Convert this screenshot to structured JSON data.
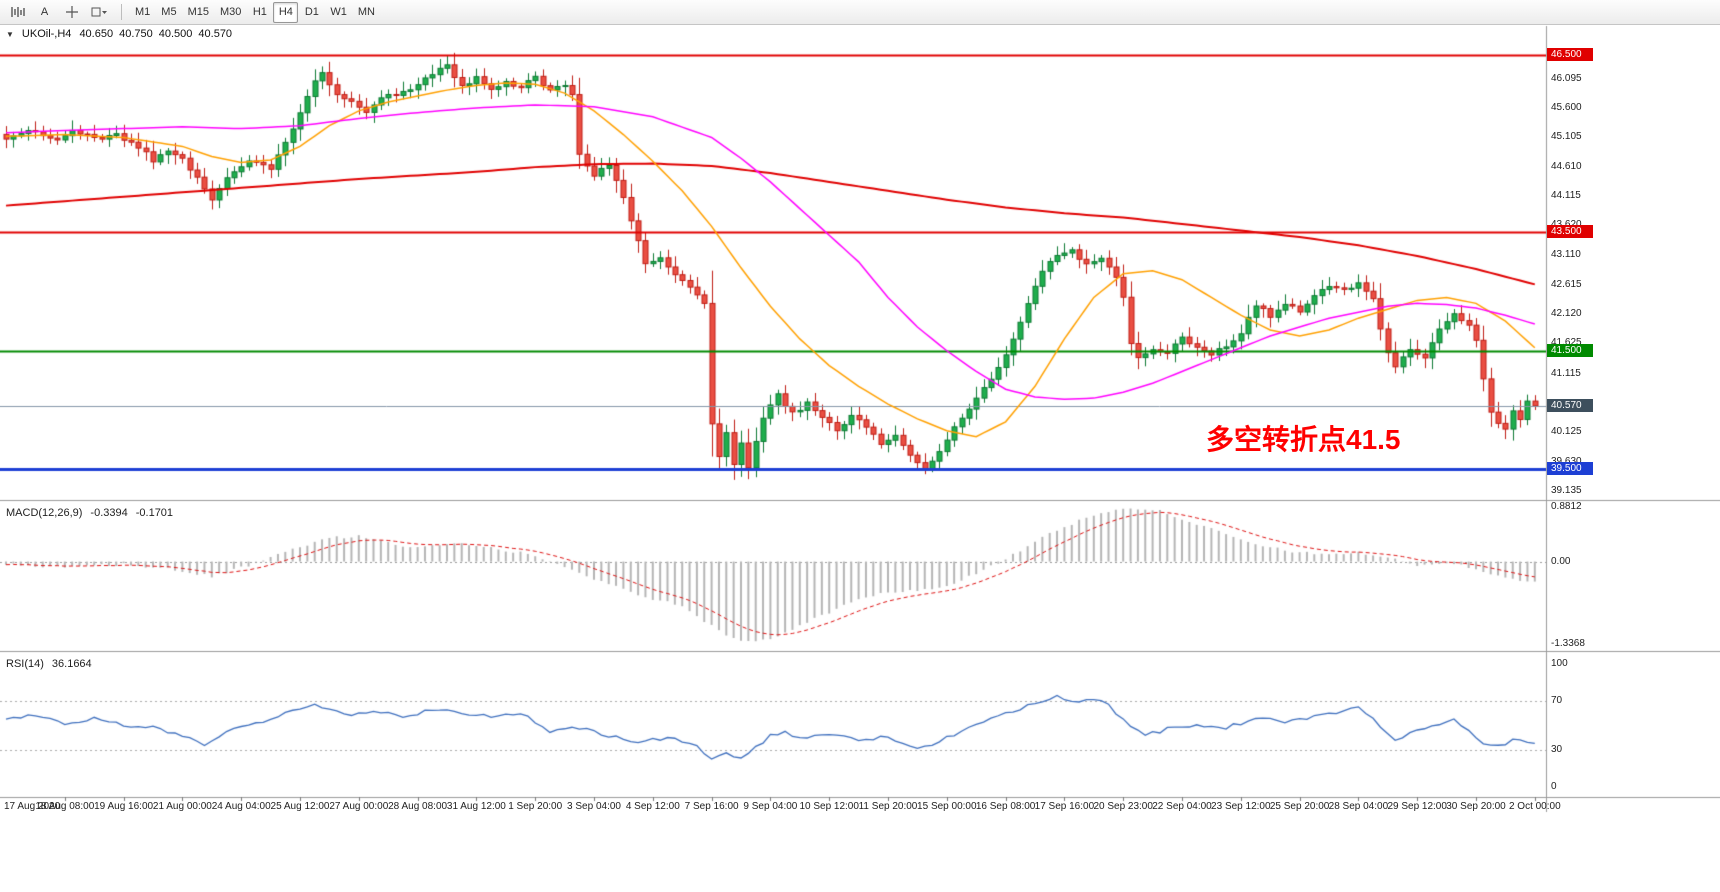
{
  "toolbar": {
    "annotate_label": "A",
    "active_timeframe": "H4",
    "timeframes": [
      {
        "label": "M1"
      },
      {
        "label": "M5"
      },
      {
        "label": "M15"
      },
      {
        "label": "M30"
      },
      {
        "label": "H1"
      },
      {
        "label": "H4"
      },
      {
        "label": "D1"
      },
      {
        "label": "W1"
      },
      {
        "label": "MN"
      }
    ]
  },
  "chart_header": {
    "collapse_icon": "▼",
    "symbol_period": "UKOil-,H4",
    "open": "40.650",
    "high": "40.750",
    "low": "40.500",
    "close": "40.570"
  },
  "annotation": {
    "text": "多空转折点41.5",
    "color": "#ff0000"
  },
  "macd": {
    "title": "MACD(12,26,9)",
    "value": "-0.3394",
    "signal": "-0.1701",
    "axis": [
      "0.8812",
      "0.00",
      "-1.3368"
    ]
  },
  "rsi": {
    "title": "RSI(14)",
    "value": "36.1664",
    "axis": [
      "100",
      "70",
      "30",
      "0"
    ]
  },
  "price_axis": [
    "46.095",
    "45.600",
    "45.105",
    "44.610",
    "44.115",
    "43.620",
    "43.110",
    "42.615",
    "42.120",
    "41.625",
    "41.115",
    "40.125",
    "39.630",
    "39.135"
  ],
  "time_axis": [
    "17 Aug 2020",
    "18 Aug 08:00",
    "19 Aug 16:00",
    "21 Aug 00:00",
    "24 Aug 04:00",
    "25 Aug 12:00",
    "27 Aug 00:00",
    "28 Aug 08:00",
    "31 Aug 12:00",
    "1 Sep 20:00",
    "3 Sep 04:00",
    "4 Sep 12:00",
    "7 Sep 16:00",
    "9 Sep 04:00",
    "10 Sep 12:00",
    "11 Sep 20:00",
    "15 Sep 00:00",
    "16 Sep 08:00",
    "17 Sep 16:00",
    "20 Sep 23:00",
    "22 Sep 04:00",
    "23 Sep 12:00",
    "25 Sep 20:00",
    "28 Sep 04:00",
    "29 Sep 12:00",
    "30 Sep 20:00",
    "2 Oct 00:00"
  ],
  "chart_data": {
    "type": "candlestick",
    "title": "UKOil-,H4",
    "bars": 209,
    "price_range": [
      38.98,
      46.78
    ],
    "macd_range": [
      -1.45,
      0.95
    ],
    "rsi_levels": [
      30,
      70
    ],
    "last_ohlc": {
      "open": 40.65,
      "high": 40.75,
      "low": 40.5,
      "close": 40.57
    },
    "hlines": [
      {
        "value": 46.5,
        "label": "46.500",
        "color": "#e00000",
        "width": 2
      },
      {
        "value": 43.5,
        "label": "43.500",
        "color": "#e00000",
        "width": 2
      },
      {
        "value": 41.5,
        "label": "41.500",
        "color": "#008a00",
        "width": 2
      },
      {
        "value": 39.5,
        "label": "39.500",
        "color": "#1d3fd4",
        "width": 3
      }
    ],
    "current_price": {
      "value": 40.57,
      "label": "40.570",
      "line_color": "#8496a8",
      "badge_color": "#3d4f5d"
    },
    "colors": {
      "up_fill": "#1fae4d",
      "up_border": "#0c7a33",
      "down_fill": "#ea4f43",
      "down_border": "#bf1d15",
      "ma_fast": "#ffa000",
      "ma_mid": "#ff00ff",
      "ma_slow": "#e00000",
      "macd_hist": "#b5b5b5",
      "macd_signal": "#dd1111",
      "rsi_line": "#3e6fbe"
    },
    "close_anchors": [
      [
        0,
        45.1
      ],
      [
        3,
        45.22
      ],
      [
        6,
        45.05
      ],
      [
        9,
        45.18
      ],
      [
        12,
        45.08
      ],
      [
        15,
        45.15
      ],
      [
        18,
        44.95
      ],
      [
        20,
        44.7
      ],
      [
        22,
        44.85
      ],
      [
        24,
        44.75
      ],
      [
        26,
        44.4
      ],
      [
        28,
        44.05
      ],
      [
        30,
        44.45
      ],
      [
        33,
        44.7
      ],
      [
        36,
        44.6
      ],
      [
        38,
        45.0
      ],
      [
        40,
        45.55
      ],
      [
        42,
        46.05
      ],
      [
        43,
        46.2
      ],
      [
        45,
        45.85
      ],
      [
        47,
        45.7
      ],
      [
        49,
        45.55
      ],
      [
        51,
        45.75
      ],
      [
        53,
        45.85
      ],
      [
        55,
        45.9
      ],
      [
        57,
        46.1
      ],
      [
        59,
        46.3
      ],
      [
        60,
        46.35
      ],
      [
        62,
        45.95
      ],
      [
        64,
        46.1
      ],
      [
        66,
        45.9
      ],
      [
        68,
        46.05
      ],
      [
        70,
        45.95
      ],
      [
        72,
        46.1
      ],
      [
        74,
        45.9
      ],
      [
        76,
        45.95
      ],
      [
        77,
        45.8
      ],
      [
        78,
        44.85
      ],
      [
        80,
        44.45
      ],
      [
        82,
        44.65
      ],
      [
        84,
        44.1
      ],
      [
        85,
        43.7
      ],
      [
        86,
        43.35
      ],
      [
        87,
        42.95
      ],
      [
        89,
        43.1
      ],
      [
        91,
        42.75
      ],
      [
        93,
        42.55
      ],
      [
        95,
        42.3
      ],
      [
        96,
        40.3
      ],
      [
        97,
        39.75
      ],
      [
        98,
        40.15
      ],
      [
        99,
        39.6
      ],
      [
        100,
        39.95
      ],
      [
        101,
        39.55
      ],
      [
        103,
        40.35
      ],
      [
        105,
        40.75
      ],
      [
        107,
        40.45
      ],
      [
        109,
        40.6
      ],
      [
        111,
        40.35
      ],
      [
        113,
        40.15
      ],
      [
        115,
        40.4
      ],
      [
        117,
        40.25
      ],
      [
        119,
        39.95
      ],
      [
        121,
        40.1
      ],
      [
        123,
        39.75
      ],
      [
        125,
        39.5
      ],
      [
        127,
        39.8
      ],
      [
        129,
        40.2
      ],
      [
        131,
        40.55
      ],
      [
        133,
        40.9
      ],
      [
        135,
        41.2
      ],
      [
        137,
        41.7
      ],
      [
        139,
        42.3
      ],
      [
        141,
        42.85
      ],
      [
        143,
        43.1
      ],
      [
        145,
        43.2
      ],
      [
        147,
        42.95
      ],
      [
        149,
        43.05
      ],
      [
        151,
        42.7
      ],
      [
        152,
        42.4
      ],
      [
        153,
        41.6
      ],
      [
        154,
        41.35
      ],
      [
        156,
        41.55
      ],
      [
        158,
        41.45
      ],
      [
        160,
        41.75
      ],
      [
        162,
        41.55
      ],
      [
        164,
        41.45
      ],
      [
        166,
        41.6
      ],
      [
        168,
        41.8
      ],
      [
        170,
        42.25
      ],
      [
        172,
        42.1
      ],
      [
        174,
        42.3
      ],
      [
        176,
        42.15
      ],
      [
        178,
        42.4
      ],
      [
        180,
        42.6
      ],
      [
        182,
        42.5
      ],
      [
        184,
        42.65
      ],
      [
        186,
        42.4
      ],
      [
        187,
        41.9
      ],
      [
        188,
        41.45
      ],
      [
        189,
        41.25
      ],
      [
        191,
        41.55
      ],
      [
        193,
        41.4
      ],
      [
        195,
        41.85
      ],
      [
        197,
        42.1
      ],
      [
        199,
        41.95
      ],
      [
        200,
        41.7
      ],
      [
        201,
        41.05
      ],
      [
        202,
        40.45
      ],
      [
        203,
        40.3
      ],
      [
        204,
        40.2
      ],
      [
        205,
        40.45
      ],
      [
        206,
        40.3
      ],
      [
        207,
        40.65
      ],
      [
        208,
        40.57
      ]
    ],
    "ma_fast_anchors": [
      [
        0,
        45.12
      ],
      [
        8,
        45.15
      ],
      [
        16,
        45.1
      ],
      [
        24,
        44.95
      ],
      [
        28,
        44.78
      ],
      [
        32,
        44.68
      ],
      [
        36,
        44.72
      ],
      [
        40,
        44.95
      ],
      [
        44,
        45.3
      ],
      [
        48,
        45.55
      ],
      [
        52,
        45.7
      ],
      [
        56,
        45.8
      ],
      [
        60,
        45.9
      ],
      [
        64,
        45.98
      ],
      [
        68,
        46.02
      ],
      [
        72,
        46.0
      ],
      [
        76,
        45.85
      ],
      [
        80,
        45.55
      ],
      [
        84,
        45.15
      ],
      [
        88,
        44.7
      ],
      [
        92,
        44.2
      ],
      [
        96,
        43.6
      ],
      [
        100,
        42.9
      ],
      [
        104,
        42.25
      ],
      [
        108,
        41.7
      ],
      [
        112,
        41.25
      ],
      [
        116,
        40.9
      ],
      [
        120,
        40.6
      ],
      [
        124,
        40.35
      ],
      [
        128,
        40.15
      ],
      [
        132,
        40.05
      ],
      [
        136,
        40.3
      ],
      [
        140,
        40.9
      ],
      [
        144,
        41.7
      ],
      [
        148,
        42.4
      ],
      [
        152,
        42.8
      ],
      [
        156,
        42.85
      ],
      [
        160,
        42.7
      ],
      [
        164,
        42.4
      ],
      [
        168,
        42.1
      ],
      [
        172,
        41.85
      ],
      [
        176,
        41.75
      ],
      [
        180,
        41.85
      ],
      [
        184,
        42.05
      ],
      [
        188,
        42.2
      ],
      [
        192,
        42.35
      ],
      [
        196,
        42.4
      ],
      [
        200,
        42.3
      ],
      [
        204,
        42.0
      ],
      [
        208,
        41.55
      ]
    ],
    "ma_mid_anchors": [
      [
        0,
        45.18
      ],
      [
        8,
        45.22
      ],
      [
        16,
        45.25
      ],
      [
        24,
        45.28
      ],
      [
        32,
        45.25
      ],
      [
        40,
        45.3
      ],
      [
        48,
        45.42
      ],
      [
        56,
        45.52
      ],
      [
        64,
        45.6
      ],
      [
        72,
        45.65
      ],
      [
        80,
        45.62
      ],
      [
        88,
        45.45
      ],
      [
        96,
        45.1
      ],
      [
        100,
        44.75
      ],
      [
        104,
        44.35
      ],
      [
        108,
        43.9
      ],
      [
        112,
        43.45
      ],
      [
        116,
        43.0
      ],
      [
        120,
        42.4
      ],
      [
        124,
        41.9
      ],
      [
        128,
        41.5
      ],
      [
        132,
        41.15
      ],
      [
        136,
        40.85
      ],
      [
        140,
        40.72
      ],
      [
        144,
        40.68
      ],
      [
        148,
        40.7
      ],
      [
        152,
        40.8
      ],
      [
        156,
        40.95
      ],
      [
        160,
        41.15
      ],
      [
        164,
        41.35
      ],
      [
        168,
        41.55
      ],
      [
        172,
        41.75
      ],
      [
        176,
        41.9
      ],
      [
        180,
        42.05
      ],
      [
        184,
        42.15
      ],
      [
        188,
        42.25
      ],
      [
        192,
        42.3
      ],
      [
        196,
        42.28
      ],
      [
        200,
        42.22
      ],
      [
        204,
        42.1
      ],
      [
        208,
        41.95
      ]
    ],
    "ma_slow_anchors": [
      [
        0,
        43.95
      ],
      [
        16,
        44.1
      ],
      [
        32,
        44.25
      ],
      [
        48,
        44.4
      ],
      [
        64,
        44.52
      ],
      [
        72,
        44.6
      ],
      [
        80,
        44.65
      ],
      [
        88,
        44.66
      ],
      [
        96,
        44.62
      ],
      [
        104,
        44.5
      ],
      [
        112,
        44.35
      ],
      [
        120,
        44.2
      ],
      [
        128,
        44.05
      ],
      [
        136,
        43.92
      ],
      [
        144,
        43.82
      ],
      [
        152,
        43.75
      ],
      [
        160,
        43.64
      ],
      [
        168,
        43.53
      ],
      [
        176,
        43.42
      ],
      [
        184,
        43.28
      ],
      [
        192,
        43.1
      ],
      [
        200,
        42.88
      ],
      [
        208,
        42.62
      ]
    ],
    "macd_anchors": [
      [
        0,
        -0.05
      ],
      [
        8,
        -0.1
      ],
      [
        16,
        -0.04
      ],
      [
        24,
        -0.15
      ],
      [
        28,
        -0.25
      ],
      [
        32,
        -0.1
      ],
      [
        36,
        0.05
      ],
      [
        40,
        0.25
      ],
      [
        44,
        0.38
      ],
      [
        48,
        0.42
      ],
      [
        52,
        0.3
      ],
      [
        56,
        0.22
      ],
      [
        60,
        0.3
      ],
      [
        64,
        0.26
      ],
      [
        68,
        0.18
      ],
      [
        72,
        0.1
      ],
      [
        76,
        -0.1
      ],
      [
        80,
        -0.28
      ],
      [
        84,
        -0.45
      ],
      [
        88,
        -0.6
      ],
      [
        92,
        -0.7
      ],
      [
        96,
        -1.05
      ],
      [
        100,
        -1.3
      ],
      [
        104,
        -1.25
      ],
      [
        108,
        -1.05
      ],
      [
        112,
        -0.82
      ],
      [
        116,
        -0.62
      ],
      [
        120,
        -0.5
      ],
      [
        124,
        -0.46
      ],
      [
        128,
        -0.4
      ],
      [
        132,
        -0.2
      ],
      [
        136,
        0.05
      ],
      [
        140,
        0.32
      ],
      [
        144,
        0.56
      ],
      [
        148,
        0.76
      ],
      [
        152,
        0.88
      ],
      [
        156,
        0.85
      ],
      [
        160,
        0.7
      ],
      [
        164,
        0.52
      ],
      [
        168,
        0.35
      ],
      [
        172,
        0.22
      ],
      [
        176,
        0.15
      ],
      [
        180,
        0.12
      ],
      [
        184,
        0.15
      ],
      [
        188,
        0.05
      ],
      [
        192,
        -0.05
      ],
      [
        196,
        -0.02
      ],
      [
        200,
        -0.12
      ],
      [
        204,
        -0.26
      ],
      [
        208,
        -0.34
      ]
    ],
    "rsi_anchors": [
      [
        0,
        55
      ],
      [
        4,
        58
      ],
      [
        8,
        52
      ],
      [
        12,
        56
      ],
      [
        16,
        50
      ],
      [
        20,
        48
      ],
      [
        24,
        42
      ],
      [
        27,
        35
      ],
      [
        30,
        45
      ],
      [
        34,
        52
      ],
      [
        38,
        60
      ],
      [
        42,
        68
      ],
      [
        46,
        58
      ],
      [
        50,
        62
      ],
      [
        54,
        57
      ],
      [
        58,
        63
      ],
      [
        62,
        60
      ],
      [
        66,
        58
      ],
      [
        70,
        60
      ],
      [
        74,
        45
      ],
      [
        78,
        48
      ],
      [
        82,
        42
      ],
      [
        86,
        36
      ],
      [
        90,
        40
      ],
      [
        94,
        33
      ],
      [
        96,
        24
      ],
      [
        98,
        28
      ],
      [
        100,
        23
      ],
      [
        102,
        32
      ],
      [
        104,
        42
      ],
      [
        106,
        45
      ],
      [
        108,
        40
      ],
      [
        112,
        43
      ],
      [
        116,
        38
      ],
      [
        120,
        41
      ],
      [
        124,
        31
      ],
      [
        126,
        33
      ],
      [
        128,
        40
      ],
      [
        132,
        52
      ],
      [
        136,
        60
      ],
      [
        140,
        68
      ],
      [
        143,
        73
      ],
      [
        146,
        70
      ],
      [
        148,
        72
      ],
      [
        150,
        66
      ],
      [
        153,
        48
      ],
      [
        155,
        42
      ],
      [
        158,
        47
      ],
      [
        162,
        50
      ],
      [
        166,
        48
      ],
      [
        170,
        56
      ],
      [
        174,
        53
      ],
      [
        178,
        57
      ],
      [
        182,
        62
      ],
      [
        184,
        65
      ],
      [
        187,
        50
      ],
      [
        189,
        39
      ],
      [
        192,
        45
      ],
      [
        195,
        52
      ],
      [
        197,
        55
      ],
      [
        199,
        46
      ],
      [
        201,
        35
      ],
      [
        203,
        33
      ],
      [
        205,
        38
      ],
      [
        208,
        36.17
      ]
    ]
  }
}
